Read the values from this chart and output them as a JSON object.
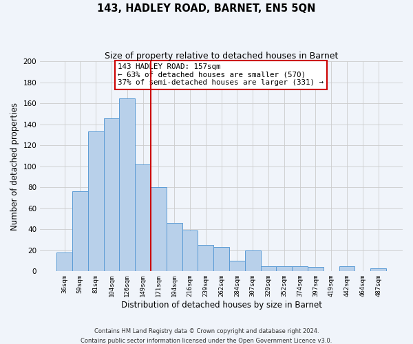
{
  "title": "143, HADLEY ROAD, BARNET, EN5 5QN",
  "subtitle": "Size of property relative to detached houses in Barnet",
  "xlabel": "Distribution of detached houses by size in Barnet",
  "ylabel": "Number of detached properties",
  "bar_labels": [
    "36sqm",
    "59sqm",
    "81sqm",
    "104sqm",
    "126sqm",
    "149sqm",
    "171sqm",
    "194sqm",
    "216sqm",
    "239sqm",
    "262sqm",
    "284sqm",
    "307sqm",
    "329sqm",
    "352sqm",
    "374sqm",
    "397sqm",
    "419sqm",
    "442sqm",
    "464sqm",
    "487sqm"
  ],
  "bar_values": [
    18,
    76,
    133,
    146,
    165,
    102,
    80,
    46,
    39,
    25,
    23,
    10,
    20,
    5,
    5,
    5,
    4,
    0,
    5,
    0,
    3
  ],
  "bar_color": "#b8d0ea",
  "bar_edge_color": "#5b9bd5",
  "vline_x": 5.5,
  "vline_color": "#cc0000",
  "annotation_title": "143 HADLEY ROAD: 157sqm",
  "annotation_line1": "← 63% of detached houses are smaller (570)",
  "annotation_line2": "37% of semi-detached houses are larger (331) →",
  "annotation_box_color": "#ffffff",
  "annotation_box_edge": "#cc0000",
  "ylim": [
    0,
    200
  ],
  "yticks": [
    0,
    20,
    40,
    60,
    80,
    100,
    120,
    140,
    160,
    180,
    200
  ],
  "grid_color": "#cccccc",
  "footer_line1": "Contains HM Land Registry data © Crown copyright and database right 2024.",
  "footer_line2": "Contains public sector information licensed under the Open Government Licence v3.0.",
  "background_color": "#f0f4fa"
}
